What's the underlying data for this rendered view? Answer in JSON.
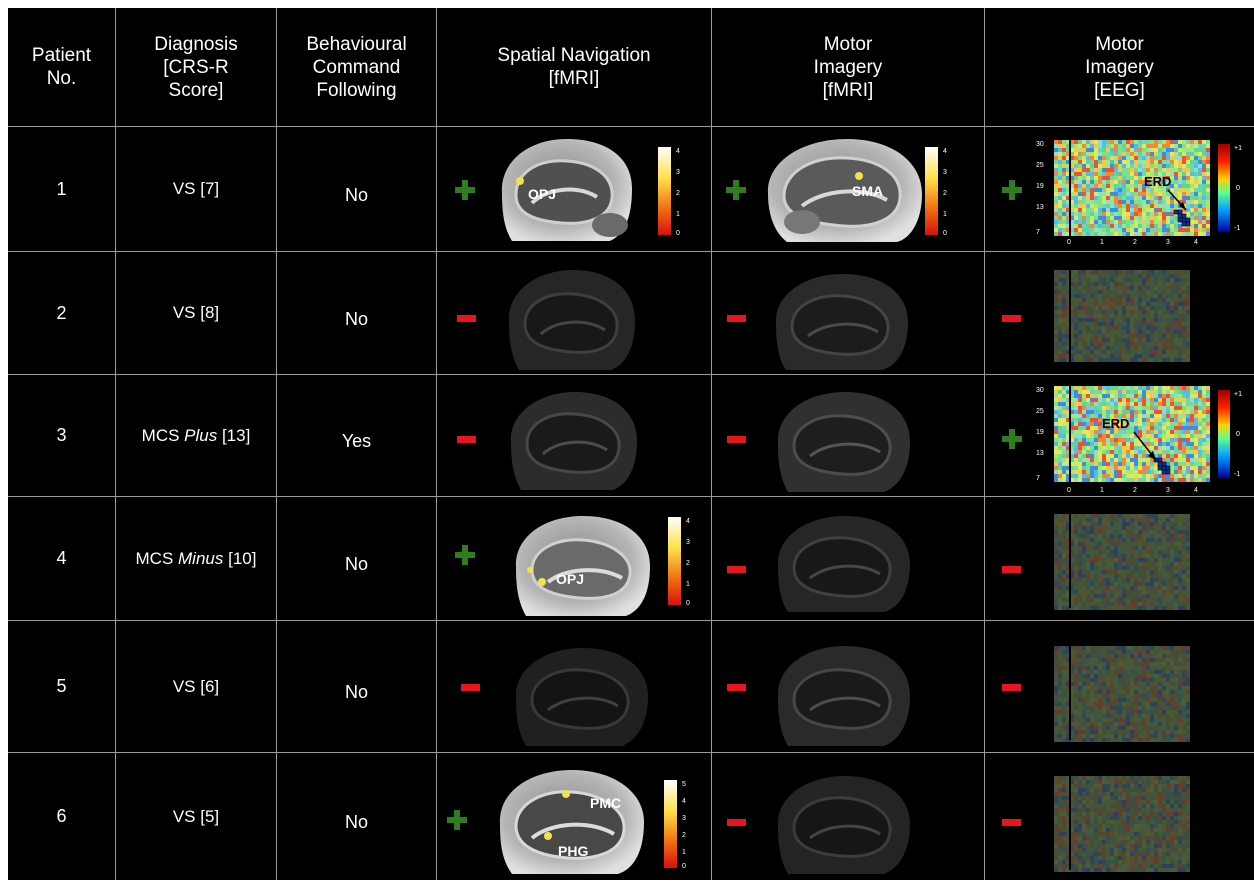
{
  "headers": {
    "patient": "Patient No.",
    "diagnosis": "Diagnosis [CRS-R Score]",
    "behavioural": "Behavioural Command Following",
    "spatial": "Spatial Navigation [fMRI]",
    "motor_fmri": "Motor Imagery [fMRI]",
    "motor_eeg": "Motor Imagery [EEG]"
  },
  "rows": [
    {
      "patient": "1",
      "diag_main": "VS [7]",
      "diag_ital": "",
      "diag_tail": "",
      "behavioural": "No",
      "spatial": "+",
      "motor_fmri": "+",
      "motor_eeg": "+"
    },
    {
      "patient": "2",
      "diag_main": "VS [8]",
      "diag_ital": "",
      "diag_tail": "",
      "behavioural": "No",
      "spatial": "-",
      "motor_fmri": "-",
      "motor_eeg": "-"
    },
    {
      "patient": "3",
      "diag_main": "MCS ",
      "diag_ital": "Plus",
      "diag_tail": " [13]",
      "behavioural": "Yes",
      "spatial": "-",
      "motor_fmri": "-",
      "motor_eeg": "+"
    },
    {
      "patient": "4",
      "diag_main": "MCS ",
      "diag_ital": "Minus",
      "diag_tail": " [10]",
      "behavioural": "No",
      "spatial": "+",
      "motor_fmri": "-",
      "motor_eeg": "-"
    },
    {
      "patient": "5",
      "diag_main": "VS [6]",
      "diag_ital": "",
      "diag_tail": "",
      "behavioural": "No",
      "spatial": "-",
      "motor_fmri": "-",
      "motor_eeg": "-"
    },
    {
      "patient": "6",
      "diag_main": "VS [5]",
      "diag_ital": "",
      "diag_tail": "",
      "behavioural": "No",
      "spatial": "+",
      "motor_fmri": "-",
      "motor_eeg": "-"
    }
  ],
  "labels": {
    "opj": "OPJ",
    "sma": "SMA",
    "erd": "ERD",
    "pmc": "PMC",
    "phg": "PHG"
  },
  "colorbar_ticks": {
    "a": [
      "4",
      "3",
      "2",
      "1",
      "0"
    ],
    "b": [
      "5",
      "4",
      "3",
      "2",
      "1",
      "0"
    ],
    "eeg": [
      "+1",
      "0",
      "-1"
    ]
  },
  "eeg_axes": {
    "y_ticks": [
      "30",
      "25",
      "19",
      "13",
      "7"
    ],
    "x_ticks": [
      "0",
      "1",
      "2",
      "3",
      "4"
    ]
  },
  "colors": {
    "plus": "#2e7d1e",
    "minus": "#e8161c",
    "background": "#000000",
    "grid": "#9a9a9a"
  }
}
